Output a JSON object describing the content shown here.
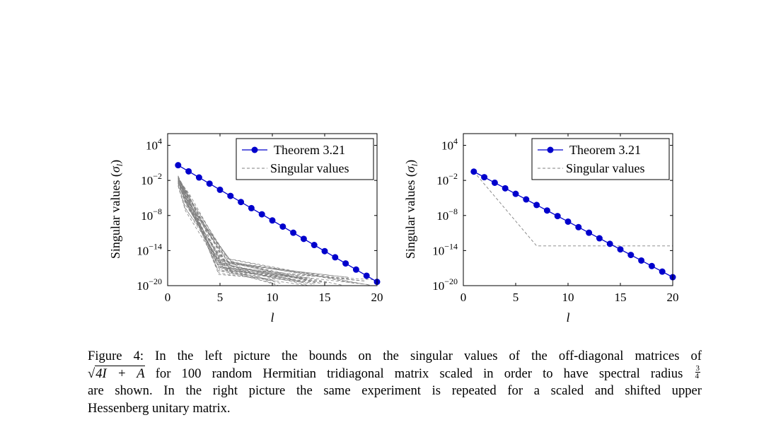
{
  "figure": {
    "charts": [
      {
        "name": "left",
        "type": "line",
        "x_ticks": [
          "0",
          "5",
          "10",
          "15",
          "20"
        ],
        "y_ticks": [
          {
            "base": "10",
            "exp": "4"
          },
          {
            "base": "10",
            "exp": "−2"
          },
          {
            "base": "10",
            "exp": "−8"
          },
          {
            "base": "10",
            "exp": "−14"
          },
          {
            "base": "10",
            "exp": "−20"
          }
        ],
        "ylabel_main": "Singular values (",
        "ylabel_sym": "σ",
        "ylabel_sub": "l",
        "ylabel_close": ")",
        "xlabel": "l",
        "legend": [
          "Theorem 3.21",
          "Singular values"
        ]
      },
      {
        "name": "right",
        "type": "line",
        "x_ticks": [
          "0",
          "5",
          "10",
          "15",
          "20"
        ],
        "y_ticks": [
          {
            "base": "10",
            "exp": "4"
          },
          {
            "base": "10",
            "exp": "−2"
          },
          {
            "base": "10",
            "exp": "−8"
          },
          {
            "base": "10",
            "exp": "−14"
          },
          {
            "base": "10",
            "exp": "−20"
          }
        ],
        "ylabel_main": "Singular values (",
        "ylabel_sym": "σ",
        "ylabel_sub": "l",
        "ylabel_close": ")",
        "xlabel": "l",
        "legend": [
          "Theorem 3.21",
          "Singular values"
        ]
      }
    ],
    "caption": {
      "line1": "Figure 4: In the left picture the bounds on the singular values of the off-diagonal matrices of",
      "sqrt_text": "4I + A",
      "line2_rest": " for 100 random Hermitian tridiagonal matrix scaled in order to have spectral radius",
      "frac_num": "3",
      "frac_den": "4",
      "line3": "are shown. In the right picture the same experiment is repeated for a scaled and shifted upper",
      "line4": "Hessenberg unitary matrix."
    }
  },
  "chart_data": [
    {
      "type": "line",
      "title": "",
      "xlabel": "l",
      "ylabel": "Singular values (σl)",
      "xlim": [
        0,
        20
      ],
      "ylim_log10": [
        -20,
        6
      ],
      "yscale": "log",
      "legend_position": "top-right",
      "colors": {
        "theorem": "#0000cc",
        "singular": "#808080"
      },
      "series": [
        {
          "name": "Theorem 3.21",
          "style": "solid line with filled circle markers",
          "x": [
            1,
            2,
            3,
            4,
            5,
            6,
            7,
            8,
            9,
            10,
            11,
            12,
            13,
            14,
            15,
            16,
            17,
            18,
            19,
            20
          ],
          "log10_y": [
            0.6,
            -0.45,
            -1.5,
            -2.55,
            -3.6,
            -4.65,
            -5.7,
            -6.75,
            -7.8,
            -8.85,
            -9.9,
            -10.95,
            -12.0,
            -13.05,
            -14.1,
            -15.15,
            -16.2,
            -17.25,
            -18.3,
            -19.35
          ]
        },
        {
          "name": "Singular values",
          "style": "dashed gray lines, 100 random trials",
          "summary": "start near 1e-1 at l=1, drop steeply to about 1e-15 by l≈5, then flatten between 1e-15 and 1e-20 out to l=10–20"
        }
      ]
    },
    {
      "type": "line",
      "title": "",
      "xlabel": "l",
      "ylabel": "Singular values (σl)",
      "xlim": [
        0,
        20
      ],
      "ylim_log10": [
        -20,
        6
      ],
      "yscale": "log",
      "legend_position": "top-right",
      "colors": {
        "theorem": "#0000cc",
        "singular": "#808080"
      },
      "series": [
        {
          "name": "Theorem 3.21",
          "style": "solid line with filled circle markers",
          "x": [
            1,
            2,
            3,
            4,
            5,
            6,
            7,
            8,
            9,
            10,
            11,
            12,
            13,
            14,
            15,
            16,
            17,
            18,
            19,
            20
          ],
          "log10_y": [
            -0.5,
            -1.45,
            -2.4,
            -3.35,
            -4.3,
            -5.25,
            -6.2,
            -7.15,
            -8.1,
            -9.05,
            -10.0,
            -10.95,
            -11.9,
            -12.85,
            -13.8,
            -14.75,
            -15.7,
            -16.65,
            -17.6,
            -18.55
          ]
        },
        {
          "name": "Singular values",
          "style": "dashed gray line",
          "x": [
            1,
            7,
            20
          ],
          "log10_y": [
            -0.5,
            -13.2,
            -13.2
          ]
        }
      ]
    }
  ]
}
